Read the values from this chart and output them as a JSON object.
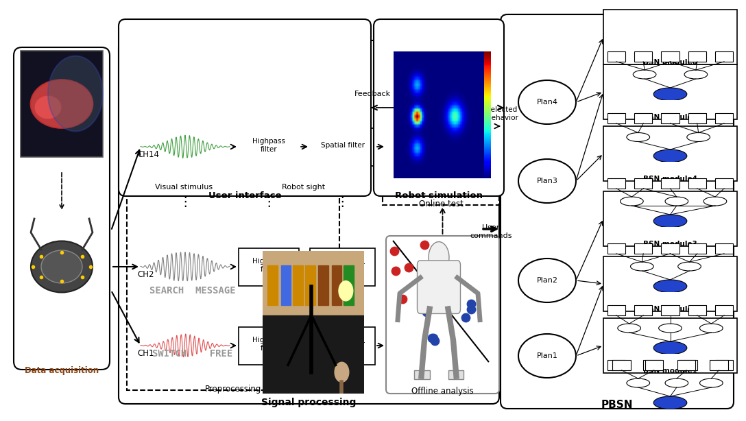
{
  "bg_color": "#ffffff",
  "da_label": "Data acquisition",
  "sp_label": "Signal processing",
  "pre_label": "Preprocessing",
  "ui_label": "User interface",
  "rs_label": "Robot simulation",
  "pbsn_label": "PBSN",
  "offline_label": "Offline analysis",
  "online_label": "Online test",
  "vs_label": "Visual stimulus",
  "robot_sight_label": "Robot sight",
  "feedback_label": "Feedback",
  "selected_label": "Selected\nbehavior",
  "user_cmd_label": "User\ncommands",
  "ch_labels": [
    "CH1",
    "CH2",
    "CH14"
  ],
  "ch_colors": [
    "#e05050",
    "#808080",
    "#40a040"
  ],
  "hf_label": "Highpass\nfilter",
  "sf_label": "Spatial filter",
  "plan_labels": [
    "Plan1",
    "Plan2",
    "Plan3",
    "Plan4"
  ],
  "bsn_labels": [
    "BSN module1",
    "BSN module2",
    "BSN module3",
    "BSN module4",
    "BSN module5",
    "BSN module6"
  ],
  "vs_lines": [
    "SEARCH  MESSAGE",
    "SWITCH    FREE"
  ]
}
